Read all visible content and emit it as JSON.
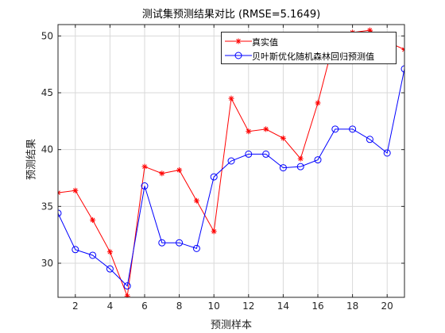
{
  "chart_data": {
    "type": "line",
    "title": "测试集预测结果对比 (RMSE=5.1649)",
    "xlabel": "预测样本",
    "ylabel": "预测结果",
    "xlim": [
      1,
      21
    ],
    "ylim": [
      27,
      51
    ],
    "xticks": [
      2,
      4,
      6,
      8,
      10,
      12,
      14,
      16,
      18,
      20
    ],
    "yticks": [
      30,
      35,
      40,
      45,
      50
    ],
    "grid": true,
    "legend_position": "top-right",
    "x": [
      1,
      2,
      3,
      4,
      5,
      6,
      7,
      8,
      9,
      10,
      11,
      12,
      13,
      14,
      15,
      16,
      17,
      18,
      19,
      20,
      21
    ],
    "series": [
      {
        "name": "真实值",
        "color": "#ff0000",
        "marker": "asterisk",
        "values": [
          36.2,
          36.4,
          33.8,
          31.0,
          27.1,
          38.5,
          37.9,
          38.2,
          35.5,
          32.8,
          44.5,
          41.6,
          41.8,
          41.0,
          39.2,
          44.1,
          50.0,
          50.3,
          50.5,
          49.5,
          48.8
        ]
      },
      {
        "name": "贝叶斯优化随机森林回归预测值",
        "color": "#0000ff",
        "marker": "circle",
        "values": [
          34.4,
          31.2,
          30.7,
          29.5,
          28.0,
          36.8,
          31.8,
          31.8,
          31.3,
          37.6,
          39.0,
          39.6,
          39.6,
          38.4,
          38.5,
          39.1,
          41.8,
          41.8,
          40.9,
          39.7,
          47.1
        ]
      }
    ]
  }
}
